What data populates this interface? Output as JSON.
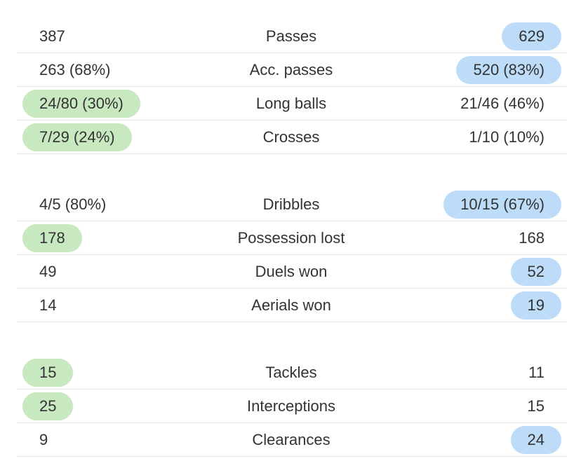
{
  "groups": [
    {
      "rows": [
        {
          "left": "387",
          "label": "Passes",
          "right": "629",
          "highlight": "right"
        },
        {
          "left": "263 (68%)",
          "label": "Acc. passes",
          "right": "520 (83%)",
          "highlight": "right"
        },
        {
          "left": "24/80 (30%)",
          "label": "Long balls",
          "right": "21/46 (46%)",
          "highlight": "left"
        },
        {
          "left": "7/29 (24%)",
          "label": "Crosses",
          "right": "1/10 (10%)",
          "highlight": "left"
        }
      ]
    },
    {
      "rows": [
        {
          "left": "4/5 (80%)",
          "label": "Dribbles",
          "right": "10/15 (67%)",
          "highlight": "right"
        },
        {
          "left": "178",
          "label": "Possession lost",
          "right": "168",
          "highlight": "left"
        },
        {
          "left": "49",
          "label": "Duels won",
          "right": "52",
          "highlight": "right"
        },
        {
          "left": "14",
          "label": "Aerials won",
          "right": "19",
          "highlight": "right"
        }
      ]
    },
    {
      "rows": [
        {
          "left": "15",
          "label": "Tackles",
          "right": "11",
          "highlight": "left"
        },
        {
          "left": "25",
          "label": "Interceptions",
          "right": "15",
          "highlight": "left"
        },
        {
          "left": "9",
          "label": "Clearances",
          "right": "24",
          "highlight": "right"
        }
      ]
    }
  ],
  "colors": {
    "left": "#c8e8bf",
    "right": "#bddcf7"
  }
}
